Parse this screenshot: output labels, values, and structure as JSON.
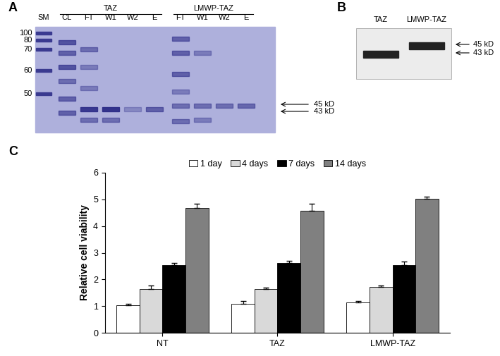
{
  "gel_a": {
    "label": "A",
    "marker_lane": "SM",
    "marker_sizes": [
      100,
      80,
      70,
      60,
      50
    ],
    "groups": [
      {
        "name": "TAZ",
        "lanes": [
          "CL",
          "FT",
          "W1",
          "W2",
          "E"
        ]
      },
      {
        "name": "LMWP-TAZ",
        "lanes": [
          "FT",
          "W1",
          "W2",
          "E"
        ]
      }
    ],
    "arrows": [
      "45 kD",
      "43 kD"
    ]
  },
  "gel_b": {
    "label": "B",
    "lanes": [
      "TAZ",
      "LMWP-TAZ"
    ],
    "arrows": [
      "45 kD",
      "43 kD"
    ]
  },
  "chart_label": "C",
  "chart_data": {
    "type": "bar",
    "categories": [
      "NT",
      "TAZ",
      "LMWP-TAZ"
    ],
    "y_label": "Relative cell viability",
    "ylim": [
      0,
      6
    ],
    "yticks": [
      0,
      1,
      2,
      3,
      4,
      5,
      6
    ],
    "grid": false,
    "legend": "upper center",
    "series": [
      {
        "name": "1 day",
        "color": "#ffffff",
        "values": [
          1.03,
          1.08,
          1.15
        ],
        "errors": [
          0.05,
          0.12,
          0.05
        ]
      },
      {
        "name": "4 days",
        "color": "#d9d9d9",
        "values": [
          1.65,
          1.65,
          1.72
        ],
        "errors": [
          0.12,
          0.05,
          0.05
        ]
      },
      {
        "name": "7 days",
        "color": "#000000",
        "values": [
          2.55,
          2.62,
          2.53
        ],
        "errors": [
          0.08,
          0.08,
          0.15
        ]
      },
      {
        "name": "14 days",
        "color": "#808080",
        "values": [
          4.68,
          4.58,
          5.03
        ],
        "errors": [
          0.15,
          0.25,
          0.08
        ]
      }
    ]
  }
}
